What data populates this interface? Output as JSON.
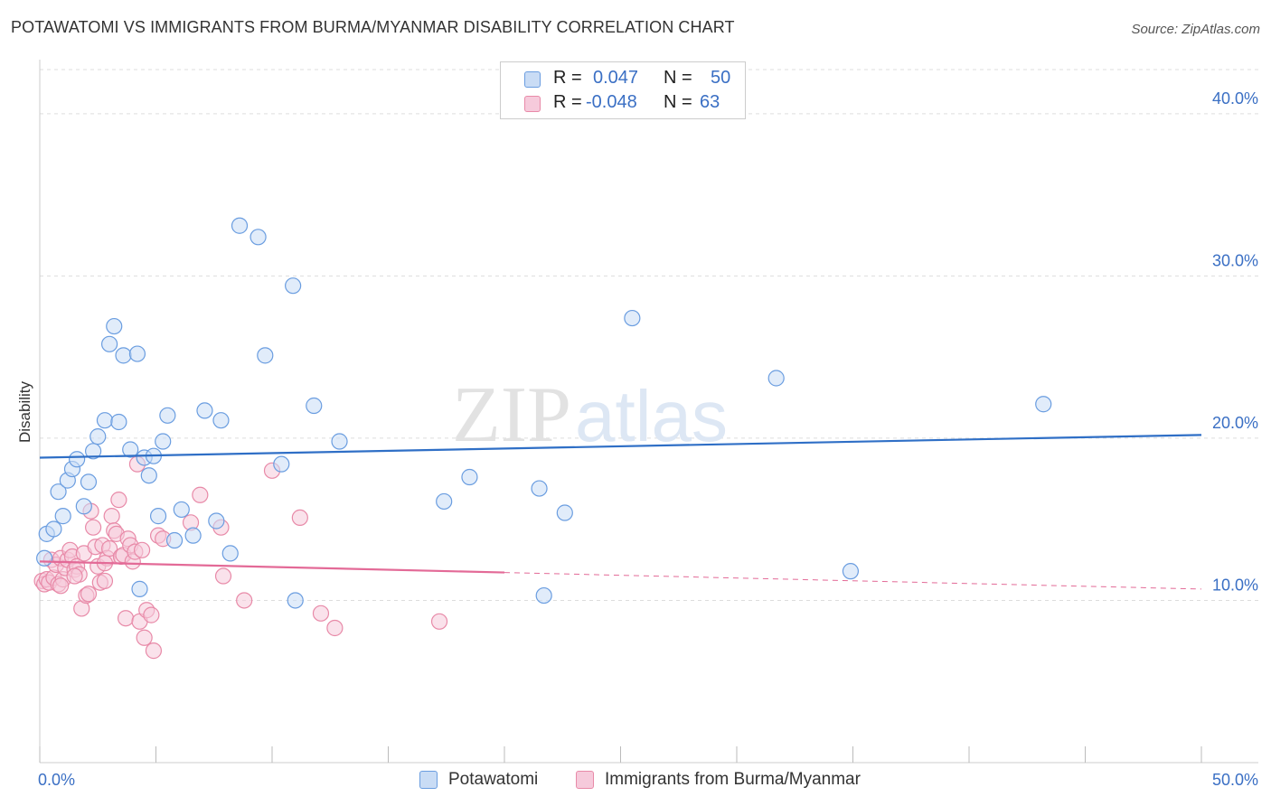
{
  "title": "POTAWATOMI VS IMMIGRANTS FROM BURMA/MYANMAR DISABILITY CORRELATION CHART",
  "source": "Source: ZipAtlas.com",
  "watermark": {
    "part1": "ZIP",
    "part2": "atlas"
  },
  "legend": {
    "rows": [
      {
        "r_label": "R =",
        "r_value": "0.047",
        "n_label": "N =",
        "n_value": "50"
      },
      {
        "r_label": "R =",
        "r_value": "-0.048",
        "n_label": "N =",
        "n_value": "63"
      }
    ]
  },
  "chart_data": {
    "type": "scatter",
    "title": "POTAWATOMI VS IMMIGRANTS FROM BURMA/MYANMAR DISABILITY CORRELATION CHART",
    "xlabel": "",
    "ylabel": "Disability",
    "xlim": [
      0,
      50
    ],
    "ylim": [
      0,
      43
    ],
    "x_tick_labels": [
      "0.0%",
      "50.0%"
    ],
    "y_ticks": [
      10,
      20,
      30,
      40
    ],
    "y_tick_labels": [
      "10.0%",
      "20.0%",
      "30.0%",
      "40.0%"
    ],
    "grid": "horizontal dashed",
    "legend_position": "top-center",
    "series": [
      {
        "name": "Potawatomi",
        "color": "#6a9de0",
        "fill": "#c9dcf5",
        "r": 0.047,
        "n": 50,
        "trend": {
          "x": [
            0,
            50
          ],
          "y": [
            18.8,
            20.2
          ],
          "dashed_from": null
        },
        "points": [
          [
            0.2,
            12.6
          ],
          [
            0.3,
            14.1
          ],
          [
            0.6,
            14.4
          ],
          [
            0.8,
            16.7
          ],
          [
            1.0,
            15.2
          ],
          [
            1.2,
            17.4
          ],
          [
            1.4,
            18.1
          ],
          [
            1.6,
            18.7
          ],
          [
            1.9,
            15.8
          ],
          [
            2.1,
            17.3
          ],
          [
            2.3,
            19.2
          ],
          [
            2.5,
            20.1
          ],
          [
            2.8,
            21.1
          ],
          [
            3.0,
            25.8
          ],
          [
            3.2,
            26.9
          ],
          [
            3.4,
            21.0
          ],
          [
            3.6,
            25.1
          ],
          [
            3.9,
            19.3
          ],
          [
            4.2,
            25.2
          ],
          [
            4.3,
            10.7
          ],
          [
            4.5,
            18.8
          ],
          [
            4.7,
            17.7
          ],
          [
            4.9,
            18.9
          ],
          [
            5.1,
            15.2
          ],
          [
            5.3,
            19.8
          ],
          [
            5.5,
            21.4
          ],
          [
            5.8,
            13.7
          ],
          [
            6.1,
            15.6
          ],
          [
            6.6,
            14.0
          ],
          [
            7.1,
            21.7
          ],
          [
            7.6,
            14.9
          ],
          [
            7.8,
            21.1
          ],
          [
            8.2,
            12.9
          ],
          [
            8.6,
            33.1
          ],
          [
            9.4,
            32.4
          ],
          [
            9.7,
            25.1
          ],
          [
            10.4,
            18.4
          ],
          [
            10.9,
            29.4
          ],
          [
            11.0,
            10.0
          ],
          [
            11.8,
            22.0
          ],
          [
            12.9,
            19.8
          ],
          [
            17.4,
            16.1
          ],
          [
            18.5,
            17.6
          ],
          [
            21.5,
            16.9
          ],
          [
            21.7,
            10.3
          ],
          [
            22.6,
            15.4
          ],
          [
            25.5,
            27.4
          ],
          [
            31.7,
            23.7
          ],
          [
            34.9,
            11.8
          ],
          [
            43.2,
            22.1
          ]
        ]
      },
      {
        "name": "Immigrants from Burma/Myanmar",
        "color": "#e88aa8",
        "fill": "#f6cadb",
        "r": -0.048,
        "n": 63,
        "trend": {
          "x": [
            0,
            50
          ],
          "y": [
            12.4,
            10.7
          ],
          "dashed_from": 20
        },
        "points": [
          [
            0.1,
            11.2
          ],
          [
            0.2,
            11.0
          ],
          [
            0.3,
            11.3
          ],
          [
            0.4,
            11.1
          ],
          [
            0.5,
            12.5
          ],
          [
            0.6,
            11.4
          ],
          [
            0.7,
            12.2
          ],
          [
            0.8,
            11.0
          ],
          [
            0.9,
            12.6
          ],
          [
            1.0,
            11.3
          ],
          [
            1.1,
            12.0
          ],
          [
            1.2,
            12.5
          ],
          [
            1.3,
            13.1
          ],
          [
            1.4,
            12.7
          ],
          [
            1.5,
            11.9
          ],
          [
            1.6,
            12.1
          ],
          [
            1.7,
            11.6
          ],
          [
            1.8,
            9.5
          ],
          [
            1.9,
            12.9
          ],
          [
            2.0,
            10.3
          ],
          [
            2.1,
            10.4
          ],
          [
            2.2,
            15.5
          ],
          [
            2.3,
            14.5
          ],
          [
            2.4,
            13.3
          ],
          [
            2.5,
            12.1
          ],
          [
            2.6,
            11.1
          ],
          [
            2.7,
            13.4
          ],
          [
            2.8,
            11.2
          ],
          [
            2.9,
            12.6
          ],
          [
            3.0,
            13.2
          ],
          [
            3.1,
            15.2
          ],
          [
            3.2,
            14.3
          ],
          [
            3.3,
            14.1
          ],
          [
            3.4,
            16.2
          ],
          [
            3.5,
            12.7
          ],
          [
            3.6,
            12.8
          ],
          [
            3.7,
            8.9
          ],
          [
            3.8,
            13.8
          ],
          [
            3.9,
            13.4
          ],
          [
            4.0,
            12.4
          ],
          [
            4.1,
            13.0
          ],
          [
            4.2,
            18.4
          ],
          [
            4.3,
            8.7
          ],
          [
            4.4,
            13.1
          ],
          [
            4.5,
            7.7
          ],
          [
            4.6,
            9.4
          ],
          [
            4.8,
            9.1
          ],
          [
            4.9,
            6.9
          ],
          [
            5.1,
            14.0
          ],
          [
            5.3,
            13.8
          ],
          [
            6.5,
            14.8
          ],
          [
            6.9,
            16.5
          ],
          [
            7.8,
            14.5
          ],
          [
            7.9,
            11.5
          ],
          [
            8.8,
            10.0
          ],
          [
            10.0,
            18.0
          ],
          [
            11.2,
            15.1
          ],
          [
            12.1,
            9.2
          ],
          [
            12.7,
            8.3
          ],
          [
            17.2,
            8.7
          ],
          [
            1.5,
            11.5
          ],
          [
            0.9,
            10.9
          ],
          [
            2.8,
            12.3
          ]
        ]
      }
    ]
  }
}
